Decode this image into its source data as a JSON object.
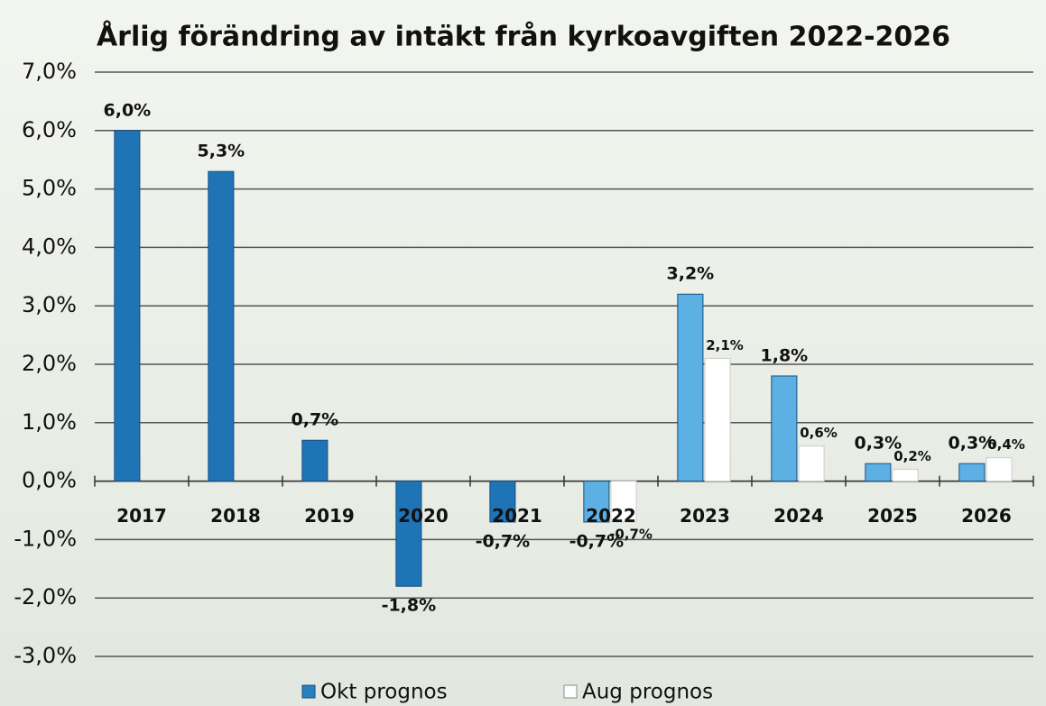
{
  "chart_data": {
    "type": "bar",
    "title": "Årlig förändring av intäkt från kyrkoavgiften 2022-2026",
    "categories": [
      "2017",
      "2018",
      "2019",
      "2020",
      "2021",
      "2022",
      "2023",
      "2024",
      "2025",
      "2026"
    ],
    "series": [
      {
        "name": "Okt prognos",
        "color": "#2a7fc0",
        "colors": [
          "#1f74b6",
          "#1f74b6",
          "#1f74b6",
          "#1f74b6",
          "#1f74b6",
          "#5cb0e4",
          "#5cb0e4",
          "#5cb0e4",
          "#5cb0e4",
          "#5cb0e4"
        ],
        "values": [
          6.0,
          5.3,
          0.7,
          -1.8,
          -0.7,
          -0.7,
          3.2,
          1.8,
          0.3,
          0.3
        ],
        "value_labels": [
          "6,0%",
          "5,3%",
          "0,7%",
          "-1,8%",
          "-0,7%",
          "-0,7%",
          "3,2%",
          "1,8%",
          "0,3%",
          "0,3%"
        ]
      },
      {
        "name": "Aug prognos",
        "color": "#ffffff",
        "values": [
          null,
          null,
          null,
          null,
          null,
          -0.7,
          2.1,
          0.6,
          0.2,
          0.4
        ],
        "value_labels": [
          null,
          null,
          null,
          null,
          null,
          "-0,7%",
          "2,1%",
          "0,6%",
          "0,2%",
          "0,4%"
        ]
      }
    ],
    "ylim": [
      -3,
      7
    ],
    "yticks": [
      {
        "value": -3,
        "label": "-3,0%"
      },
      {
        "value": -2,
        "label": "-2,0%"
      },
      {
        "value": -1,
        "label": "-1,0%"
      },
      {
        "value": 0,
        "label": "0,0%"
      },
      {
        "value": 1,
        "label": "1,0%"
      },
      {
        "value": 2,
        "label": "2,0%"
      },
      {
        "value": 3,
        "label": "3,0%"
      },
      {
        "value": 4,
        "label": "4,0%"
      },
      {
        "value": 5,
        "label": "5,0%"
      },
      {
        "value": 6,
        "label": "6,0%"
      },
      {
        "value": 7,
        "label": "7,0%"
      }
    ],
    "grid": true,
    "legend": "bottom"
  }
}
